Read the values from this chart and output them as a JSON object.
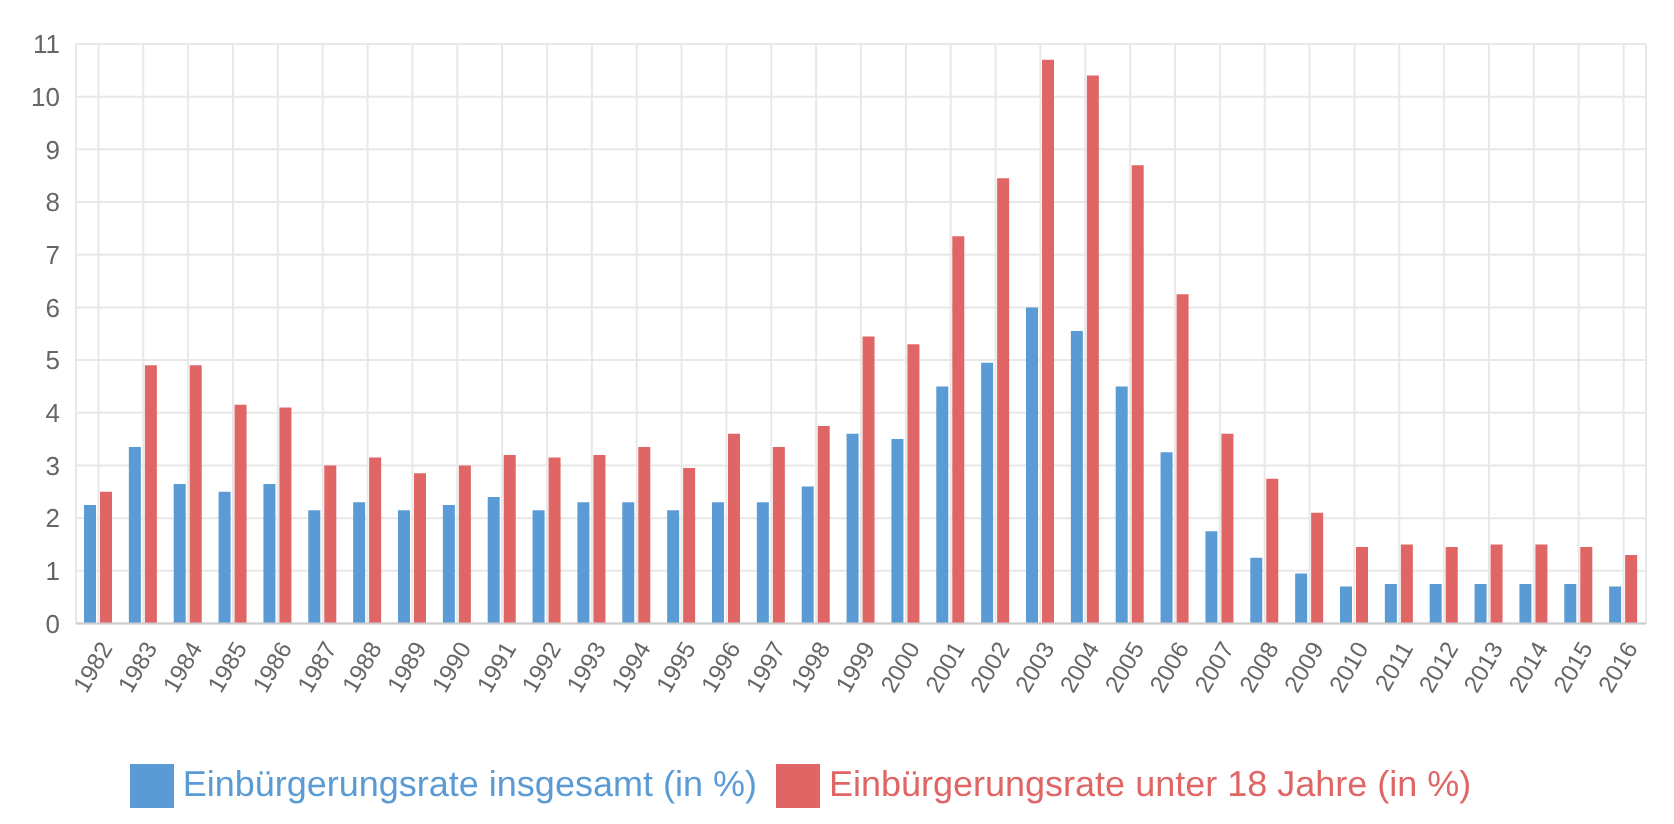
{
  "chart_data": {
    "type": "bar",
    "categories": [
      "1982",
      "1983",
      "1984",
      "1985",
      "1986",
      "1987",
      "1988",
      "1989",
      "1990",
      "1991",
      "1992",
      "1993",
      "1994",
      "1995",
      "1996",
      "1997",
      "1998",
      "1999",
      "2000",
      "2001",
      "2002",
      "2003",
      "2004",
      "2005",
      "2006",
      "2007",
      "2008",
      "2009",
      "2010",
      "2011",
      "2012",
      "2013",
      "2014",
      "2015",
      "2016"
    ],
    "series": [
      {
        "name": "Einbürgerungsrate insgesamt (in %)",
        "color": "#5b9bd5",
        "values": [
          2.25,
          3.35,
          2.65,
          2.5,
          2.65,
          2.15,
          2.3,
          2.15,
          2.25,
          2.4,
          2.15,
          2.3,
          2.3,
          2.15,
          2.3,
          2.3,
          2.6,
          3.6,
          3.5,
          4.5,
          4.95,
          6.0,
          5.55,
          4.5,
          3.25,
          1.75,
          1.25,
          0.95,
          0.7,
          0.75,
          0.75,
          0.75,
          0.75,
          0.75,
          0.7
        ]
      },
      {
        "name": "Einbürgerungsrate unter 18 Jahre (in %)",
        "color": "#e06666",
        "values": [
          2.5,
          4.9,
          4.9,
          4.15,
          4.1,
          3.0,
          3.15,
          2.85,
          3.0,
          3.2,
          3.15,
          3.2,
          3.35,
          2.95,
          3.6,
          3.35,
          3.75,
          5.45,
          5.3,
          7.35,
          8.45,
          10.7,
          10.4,
          8.7,
          6.25,
          3.6,
          2.75,
          2.1,
          1.45,
          1.5,
          1.45,
          1.5,
          1.5,
          1.45,
          1.3
        ]
      }
    ],
    "ylim": [
      0,
      11
    ],
    "yticks": [
      0,
      1,
      2,
      3,
      4,
      5,
      6,
      7,
      8,
      9,
      10,
      11
    ],
    "grid": true,
    "legend": "bottom"
  }
}
